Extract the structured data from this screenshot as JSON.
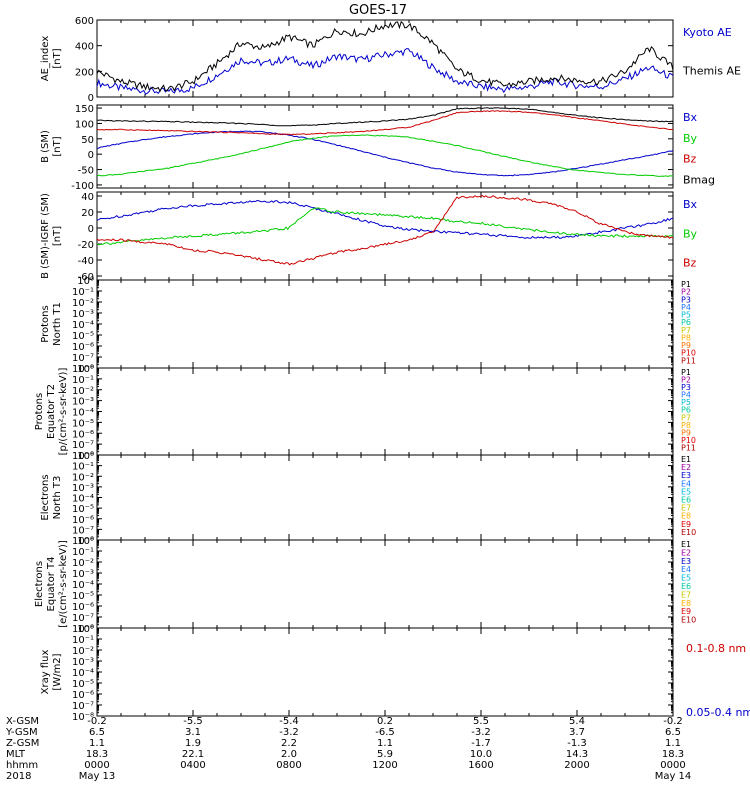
{
  "title": "GOES-17",
  "chart_data": [
    {
      "type": "line",
      "panel": "ae",
      "ylabel": [
        "AE_index",
        "[nT]"
      ],
      "ylim": [
        0,
        600
      ],
      "yticks": [
        0,
        200,
        400,
        600
      ],
      "x_hours": [
        0,
        1,
        2,
        3,
        4,
        5,
        6,
        7,
        8,
        9,
        10,
        11,
        12,
        13,
        14,
        15,
        16,
        17,
        18,
        19,
        20,
        21,
        22,
        23,
        24
      ],
      "legend_placement": "right",
      "series": [
        {
          "name": "Kyoto AE",
          "color": "#0000cc",
          "values": [
            110,
            70,
            50,
            40,
            70,
            170,
            290,
            260,
            300,
            240,
            320,
            290,
            330,
            360,
            230,
            120,
            80,
            60,
            80,
            120,
            90,
            80,
            140,
            230,
            150
          ]
        },
        {
          "name": "Themis AE",
          "color": "#000000",
          "values": [
            200,
            120,
            80,
            60,
            120,
            260,
            420,
            380,
            470,
            400,
            520,
            490,
            560,
            560,
            420,
            210,
            130,
            90,
            120,
            150,
            130,
            120,
            200,
            380,
            230
          ]
        }
      ]
    },
    {
      "type": "line",
      "panel": "b_sm",
      "ylabel": [
        "B (SM)",
        "[nT]"
      ],
      "ylim": [
        -110,
        160
      ],
      "yticks": [
        -100,
        -50,
        0,
        50,
        100,
        150
      ],
      "x_hours": [
        0,
        1,
        2,
        3,
        4,
        5,
        6,
        7,
        8,
        9,
        10,
        11,
        12,
        13,
        14,
        15,
        16,
        17,
        18,
        19,
        20,
        21,
        22,
        23,
        24
      ],
      "legend_placement": "right",
      "series": [
        {
          "name": "Bx",
          "color": "#0000cc",
          "values": [
            20,
            35,
            48,
            58,
            66,
            72,
            75,
            72,
            62,
            48,
            30,
            10,
            -10,
            -28,
            -45,
            -58,
            -66,
            -70,
            -66,
            -58,
            -46,
            -32,
            -18,
            -5,
            12
          ]
        },
        {
          "name": "By",
          "color": "#00cc00",
          "values": [
            -70,
            -65,
            -55,
            -45,
            -30,
            -15,
            2,
            20,
            40,
            52,
            60,
            62,
            60,
            55,
            42,
            28,
            10,
            -8,
            -25,
            -40,
            -52,
            -60,
            -66,
            -70,
            -72
          ]
        },
        {
          "name": "Bz",
          "color": "#cc0000",
          "values": [
            80,
            80,
            78,
            76,
            74,
            72,
            70,
            66,
            64,
            66,
            70,
            74,
            80,
            88,
            110,
            135,
            140,
            140,
            136,
            128,
            118,
            108,
            98,
            88,
            80
          ]
        },
        {
          "name": "Bmag",
          "color": "#000000",
          "values": [
            110,
            108,
            107,
            106,
            104,
            102,
            100,
            96,
            92,
            95,
            100,
            104,
            108,
            114,
            126,
            148,
            150,
            150,
            146,
            136,
            126,
            118,
            112,
            108,
            106
          ]
        }
      ]
    },
    {
      "type": "line",
      "panel": "b_igrf",
      "ylabel": [
        "B (SM)-IGRF (SM)",
        "[nT]"
      ],
      "ylim": [
        -65,
        45
      ],
      "yticks": [
        -60,
        -40,
        -20,
        0,
        20,
        40
      ],
      "x_hours": [
        0,
        1,
        2,
        3,
        4,
        5,
        6,
        7,
        8,
        9,
        10,
        11,
        12,
        13,
        14,
        15,
        16,
        17,
        18,
        19,
        20,
        21,
        22,
        23,
        24
      ],
      "legend_placement": "right",
      "series": [
        {
          "name": "Bx",
          "color": "#0000cc",
          "values": [
            10,
            15,
            20,
            25,
            28,
            30,
            32,
            34,
            32,
            25,
            18,
            10,
            2,
            -2,
            -4,
            -6,
            -8,
            -10,
            -12,
            -12,
            -10,
            -5,
            0,
            5,
            12
          ]
        },
        {
          "name": "By",
          "color": "#00cc00",
          "values": [
            -20,
            -18,
            -15,
            -12,
            -10,
            -8,
            -6,
            -4,
            0,
            25,
            20,
            18,
            16,
            14,
            12,
            8,
            6,
            2,
            -2,
            -6,
            -8,
            -10,
            -10,
            -10,
            -10
          ]
        },
        {
          "name": "Bz",
          "color": "#cc0000",
          "values": [
            -15,
            -15,
            -18,
            -20,
            -28,
            -30,
            -35,
            -40,
            -45,
            -38,
            -30,
            -26,
            -20,
            -15,
            -5,
            38,
            40,
            38,
            35,
            30,
            20,
            5,
            -5,
            -10,
            -12
          ]
        }
      ]
    },
    {
      "type": "line",
      "panel": "protons_t1",
      "ylabel": [
        "Protons",
        "North T1"
      ],
      "yscale": "log",
      "ylim": [
        1e-08,
        1
      ],
      "yticks": [
        "10⁰",
        "10⁻¹",
        "10⁻²",
        "10⁻³",
        "10⁻⁴",
        "10⁻⁵",
        "10⁻⁶",
        "10⁻⁷",
        "10⁻⁸"
      ],
      "legend_placement": "right",
      "series": [
        {
          "name": "P1",
          "color": "#000000",
          "values": []
        },
        {
          "name": "P2",
          "color": "#a000a0",
          "values": []
        },
        {
          "name": "P3",
          "color": "#0000cc",
          "values": []
        },
        {
          "name": "P4",
          "color": "#1e78ff",
          "values": []
        },
        {
          "name": "P5",
          "color": "#00bbdd",
          "values": []
        },
        {
          "name": "P6",
          "color": "#00c8a0",
          "values": []
        },
        {
          "name": "P7",
          "color": "#c8c800",
          "values": []
        },
        {
          "name": "P8",
          "color": "#ffb000",
          "values": []
        },
        {
          "name": "P9",
          "color": "#ff7000",
          "values": []
        },
        {
          "name": "P10",
          "color": "#e00000",
          "values": []
        },
        {
          "name": "P11",
          "color": "#b00000",
          "values": []
        }
      ]
    },
    {
      "type": "line",
      "panel": "protons_t2",
      "ylabel": [
        "Protons",
        "Equator T2",
        "[p/(cm²-s-sr-keV)]"
      ],
      "yscale": "log",
      "ylim": [
        1e-08,
        1
      ],
      "yticks": [
        "10⁰",
        "10⁻¹",
        "10⁻²",
        "10⁻³",
        "10⁻⁴",
        "10⁻⁵",
        "10⁻⁶",
        "10⁻⁷",
        "10⁻⁸"
      ],
      "legend_placement": "right",
      "series": [
        {
          "name": "P1",
          "color": "#000000",
          "values": []
        },
        {
          "name": "P2",
          "color": "#a000a0",
          "values": []
        },
        {
          "name": "P3",
          "color": "#0000cc",
          "values": []
        },
        {
          "name": "P4",
          "color": "#1e78ff",
          "values": []
        },
        {
          "name": "P5",
          "color": "#00bbdd",
          "values": []
        },
        {
          "name": "P6",
          "color": "#00c8a0",
          "values": []
        },
        {
          "name": "P7",
          "color": "#c8c800",
          "values": []
        },
        {
          "name": "P8",
          "color": "#ffb000",
          "values": []
        },
        {
          "name": "P9",
          "color": "#ff7000",
          "values": []
        },
        {
          "name": "P10",
          "color": "#e00000",
          "values": []
        },
        {
          "name": "P11",
          "color": "#b00000",
          "values": []
        }
      ]
    },
    {
      "type": "line",
      "panel": "electrons_t3",
      "ylabel": [
        "Electrons",
        "North T3"
      ],
      "yscale": "log",
      "ylim": [
        1e-08,
        1
      ],
      "yticks": [
        "10⁰",
        "10⁻¹",
        "10⁻²",
        "10⁻³",
        "10⁻⁴",
        "10⁻⁵",
        "10⁻⁶",
        "10⁻⁷",
        "10⁻⁸"
      ],
      "legend_placement": "right",
      "series": [
        {
          "name": "E1",
          "color": "#000000",
          "values": []
        },
        {
          "name": "E2",
          "color": "#a000a0",
          "values": []
        },
        {
          "name": "E3",
          "color": "#0000cc",
          "values": []
        },
        {
          "name": "E4",
          "color": "#1e78ff",
          "values": []
        },
        {
          "name": "E5",
          "color": "#00bbdd",
          "values": []
        },
        {
          "name": "E6",
          "color": "#00c8a0",
          "values": []
        },
        {
          "name": "E7",
          "color": "#c8c800",
          "values": []
        },
        {
          "name": "E8",
          "color": "#ffb000",
          "values": []
        },
        {
          "name": "E9",
          "color": "#e00000",
          "values": []
        },
        {
          "name": "E10",
          "color": "#b00000",
          "values": []
        }
      ]
    },
    {
      "type": "line",
      "panel": "electrons_t4",
      "ylabel": [
        "Electrons",
        "Equator T4",
        "[e/(cm²-s-sr-keV)]"
      ],
      "yscale": "log",
      "ylim": [
        1e-08,
        1
      ],
      "yticks": [
        "10⁰",
        "10⁻¹",
        "10⁻²",
        "10⁻³",
        "10⁻⁴",
        "10⁻⁵",
        "10⁻⁶",
        "10⁻⁷",
        "10⁻⁸"
      ],
      "legend_placement": "right",
      "series": [
        {
          "name": "E1",
          "color": "#000000",
          "values": []
        },
        {
          "name": "E2",
          "color": "#a000a0",
          "values": []
        },
        {
          "name": "E3",
          "color": "#0000cc",
          "values": []
        },
        {
          "name": "E4",
          "color": "#1e78ff",
          "values": []
        },
        {
          "name": "E5",
          "color": "#00bbdd",
          "values": []
        },
        {
          "name": "E6",
          "color": "#00c8a0",
          "values": []
        },
        {
          "name": "E7",
          "color": "#c8c800",
          "values": []
        },
        {
          "name": "E8",
          "color": "#ffb000",
          "values": []
        },
        {
          "name": "E9",
          "color": "#e00000",
          "values": []
        },
        {
          "name": "E10",
          "color": "#b00000",
          "values": []
        }
      ]
    },
    {
      "type": "line",
      "panel": "xray",
      "ylabel": [
        "Xray flux",
        "[W/m2]"
      ],
      "yscale": "log",
      "ylim": [
        1e-08,
        1
      ],
      "yticks": [
        "10⁰",
        "10⁻¹",
        "10⁻²",
        "10⁻³",
        "10⁻⁴",
        "10⁻⁵",
        "10⁻⁶",
        "10⁻⁷",
        "10⁻⁸"
      ],
      "legend_placement": "right",
      "series": [
        {
          "name": "0.1-0.8 nm",
          "color": "#cc0000",
          "values": []
        },
        {
          "name": "0.05-0.4 nm",
          "color": "#0000cc",
          "values": []
        }
      ]
    }
  ],
  "x_axis": {
    "row_labels": [
      "X-GSM",
      "Y-GSM",
      "Z-GSM",
      "MLT",
      "hhmm",
      "2018"
    ],
    "ticks": [
      {
        "hour": 0,
        "values": [
          "-0.2",
          "6.5",
          "1.1",
          "18.3",
          "0000",
          "May 13"
        ]
      },
      {
        "hour": 4,
        "values": [
          "-5.5",
          "3.1",
          "1.9",
          "22.1",
          "0400",
          ""
        ]
      },
      {
        "hour": 8,
        "values": [
          "-5.4",
          "-3.2",
          "2.2",
          "2.0",
          "0800",
          ""
        ]
      },
      {
        "hour": 12,
        "values": [
          "0.2",
          "-6.5",
          "1.1",
          "5.9",
          "1200",
          ""
        ]
      },
      {
        "hour": 16,
        "values": [
          "5.5",
          "-3.2",
          "-1.7",
          "10.0",
          "1600",
          ""
        ]
      },
      {
        "hour": 20,
        "values": [
          "5.4",
          "3.7",
          "-1.3",
          "14.3",
          "2000",
          ""
        ]
      },
      {
        "hour": 24,
        "values": [
          "-0.2",
          "6.5",
          "1.1",
          "18.3",
          "0000",
          "May 14"
        ]
      }
    ]
  }
}
